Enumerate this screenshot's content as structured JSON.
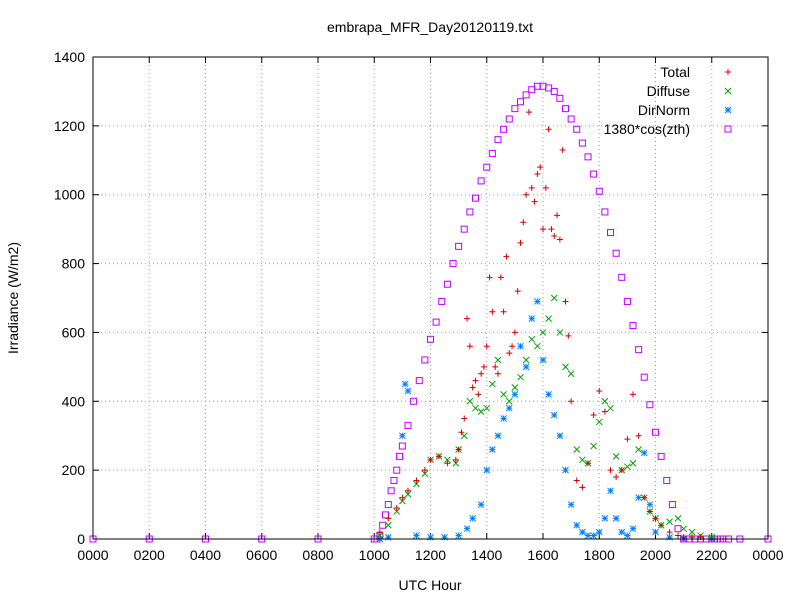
{
  "chart_data": {
    "type": "scatter",
    "title": "embrapa_MFR_Day20120119.txt",
    "xlabel": "UTC Hour",
    "ylabel": "Irradiance (W/m2)",
    "xlim": [
      0,
      24
    ],
    "ylim": [
      0,
      1400
    ],
    "grid": true,
    "legend_position": "top-right",
    "x_tick_labels": [
      "0000",
      "0200",
      "0400",
      "0600",
      "0800",
      "1000",
      "1200",
      "1400",
      "1600",
      "1800",
      "2000",
      "2200",
      "0000"
    ],
    "y_tick_labels": [
      "0",
      "200",
      "400",
      "600",
      "800",
      "1000",
      "1200",
      "1400"
    ],
    "y_ticks": [
      0,
      200,
      400,
      600,
      800,
      1000,
      1200,
      1400
    ],
    "series": [
      {
        "name": "Total",
        "marker": "plus",
        "color": "#d40000",
        "x": [
          10.2,
          10.5,
          10.8,
          11.0,
          11.2,
          11.5,
          11.8,
          12.0,
          12.3,
          12.6,
          12.9,
          13.0,
          13.1,
          13.2,
          13.3,
          13.4,
          13.5,
          13.6,
          13.7,
          13.8,
          13.9,
          14.0,
          14.1,
          14.2,
          14.3,
          14.4,
          14.5,
          14.6,
          14.7,
          14.8,
          14.9,
          15.0,
          15.1,
          15.2,
          15.3,
          15.4,
          15.5,
          15.6,
          15.7,
          15.8,
          15.9,
          16.0,
          16.1,
          16.2,
          16.3,
          16.4,
          16.5,
          16.6,
          16.7,
          16.8,
          16.9,
          17.0,
          17.2,
          17.4,
          17.6,
          17.8,
          18.0,
          18.2,
          18.4,
          18.6,
          18.8,
          19.0,
          19.2,
          19.4,
          19.6,
          19.8,
          20.0,
          20.2,
          20.5,
          20.8,
          21.0,
          21.3,
          21.6,
          22.0,
          22.2
        ],
        "y": [
          20,
          60,
          90,
          120,
          140,
          170,
          200,
          230,
          240,
          220,
          230,
          260,
          310,
          350,
          640,
          560,
          440,
          460,
          420,
          480,
          500,
          560,
          760,
          660,
          500,
          480,
          760,
          660,
          820,
          540,
          560,
          600,
          720,
          860,
          920,
          1000,
          1240,
          1020,
          980,
          1060,
          1080,
          900,
          1020,
          1190,
          900,
          880,
          940,
          870,
          1130,
          690,
          590,
          400,
          170,
          150,
          220,
          360,
          430,
          370,
          200,
          180,
          200,
          290,
          420,
          300,
          120,
          80,
          60,
          40,
          20,
          10,
          5,
          5,
          5,
          0,
          0
        ]
      },
      {
        "name": "Diffuse",
        "marker": "cross",
        "color": "#00a000",
        "x": [
          10.2,
          10.5,
          10.8,
          11.0,
          11.2,
          11.5,
          11.8,
          12.0,
          12.3,
          12.6,
          12.9,
          13.0,
          13.2,
          13.4,
          13.6,
          13.8,
          14.0,
          14.2,
          14.4,
          14.6,
          14.8,
          15.0,
          15.2,
          15.4,
          15.6,
          15.8,
          16.0,
          16.2,
          16.4,
          16.6,
          16.8,
          17.0,
          17.2,
          17.4,
          17.6,
          17.8,
          18.0,
          18.2,
          18.4,
          18.6,
          18.8,
          19.0,
          19.2,
          19.4,
          19.6,
          19.8,
          20.0,
          20.2,
          20.5,
          20.8,
          21.0,
          21.3,
          21.6,
          22.0
        ],
        "y": [
          10,
          40,
          80,
          110,
          130,
          160,
          190,
          230,
          240,
          230,
          220,
          260,
          300,
          400,
          380,
          370,
          380,
          450,
          520,
          420,
          400,
          440,
          470,
          520,
          580,
          560,
          600,
          640,
          700,
          600,
          500,
          480,
          260,
          230,
          220,
          270,
          340,
          400,
          380,
          240,
          200,
          210,
          220,
          260,
          120,
          80,
          60,
          40,
          50,
          60,
          30,
          20,
          10,
          5
        ]
      },
      {
        "name": "DirNorm",
        "marker": "star",
        "color": "#0080ff",
        "x": [
          10.2,
          10.5,
          11.0,
          11.1,
          11.2,
          11.5,
          12.0,
          12.5,
          13.0,
          13.3,
          13.5,
          13.8,
          14.0,
          14.2,
          14.4,
          14.6,
          14.8,
          15.0,
          15.2,
          15.4,
          15.6,
          15.8,
          16.0,
          16.2,
          16.4,
          16.6,
          16.8,
          17.0,
          17.2,
          17.4,
          17.6,
          17.8,
          18.0,
          18.2,
          18.4,
          18.6,
          18.8,
          19.0,
          19.2,
          19.4,
          19.6,
          19.8,
          20.0,
          20.5,
          21.0,
          22.0
        ],
        "y": [
          0,
          5,
          300,
          450,
          430,
          10,
          5,
          5,
          10,
          30,
          60,
          100,
          200,
          260,
          300,
          350,
          380,
          420,
          560,
          500,
          640,
          690,
          520,
          420,
          360,
          300,
          200,
          100,
          40,
          20,
          10,
          10,
          20,
          60,
          140,
          60,
          20,
          10,
          30,
          120,
          250,
          100,
          20,
          5,
          0,
          0
        ]
      },
      {
        "name": "1380*cos(zth)",
        "marker": "square",
        "color": "#c000ff",
        "x": [
          0,
          2,
          4,
          6,
          8,
          10,
          10.1,
          10.2,
          10.3,
          10.4,
          10.5,
          10.6,
          10.7,
          10.8,
          10.9,
          11.0,
          11.2,
          11.4,
          11.6,
          11.8,
          12.0,
          12.2,
          12.4,
          12.6,
          12.8,
          13.0,
          13.2,
          13.4,
          13.6,
          13.8,
          14.0,
          14.2,
          14.4,
          14.6,
          14.8,
          15.0,
          15.2,
          15.4,
          15.6,
          15.8,
          16.0,
          16.2,
          16.4,
          16.6,
          16.8,
          17.0,
          17.2,
          17.4,
          17.6,
          17.8,
          18.0,
          18.2,
          18.4,
          18.6,
          18.8,
          19.0,
          19.2,
          19.4,
          19.6,
          19.8,
          20.0,
          20.2,
          20.4,
          20.6,
          20.8,
          21.0,
          21.2,
          21.4,
          21.6,
          21.8,
          22.0,
          22.2,
          22.3,
          22.4,
          22.6,
          23.0,
          24.0
        ],
        "y": [
          0,
          0,
          0,
          0,
          0,
          0,
          0,
          10,
          40,
          70,
          100,
          140,
          170,
          200,
          240,
          270,
          330,
          400,
          460,
          520,
          580,
          630,
          690,
          740,
          800,
          850,
          900,
          950,
          990,
          1040,
          1080,
          1120,
          1160,
          1190,
          1220,
          1250,
          1270,
          1290,
          1305,
          1315,
          1315,
          1310,
          1300,
          1280,
          1250,
          1220,
          1190,
          1150,
          1110,
          1060,
          1010,
          950,
          890,
          830,
          760,
          690,
          620,
          550,
          470,
          390,
          310,
          240,
          170,
          100,
          30,
          0,
          0,
          0,
          0,
          0,
          0,
          0,
          0,
          0,
          0,
          0,
          0
        ]
      }
    ]
  }
}
